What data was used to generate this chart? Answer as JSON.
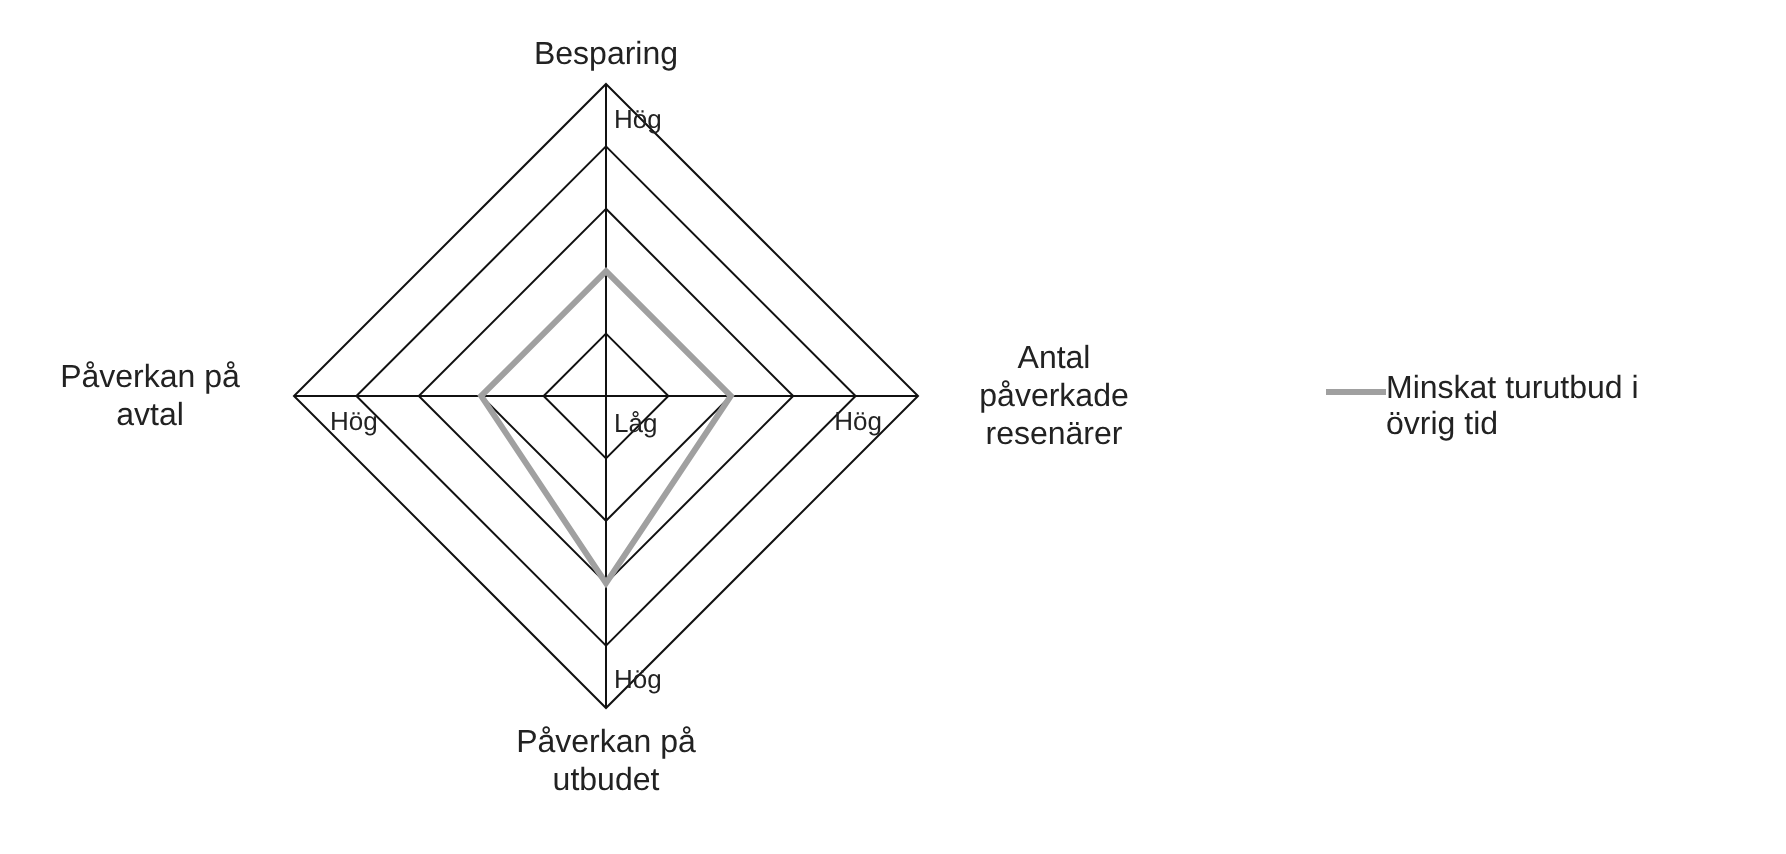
{
  "chart_data": {
    "type": "radar",
    "categories": [
      "Besparing",
      "Antal påverkade resenärer",
      "Påverkan på utbudet",
      "Påverkan på avtal"
    ],
    "series": [
      {
        "name": "Minskat turutbud i övrig tid",
        "color": "#a0a0a0",
        "values": [
          0.4,
          0.4,
          0.6,
          0.4
        ]
      }
    ],
    "ylim": [
      0,
      1
    ],
    "yticks": [
      {
        "value": 0,
        "label": "Låg"
      },
      {
        "value": 1,
        "label": "Hög"
      }
    ],
    "grid": true,
    "legend": "right"
  }
}
